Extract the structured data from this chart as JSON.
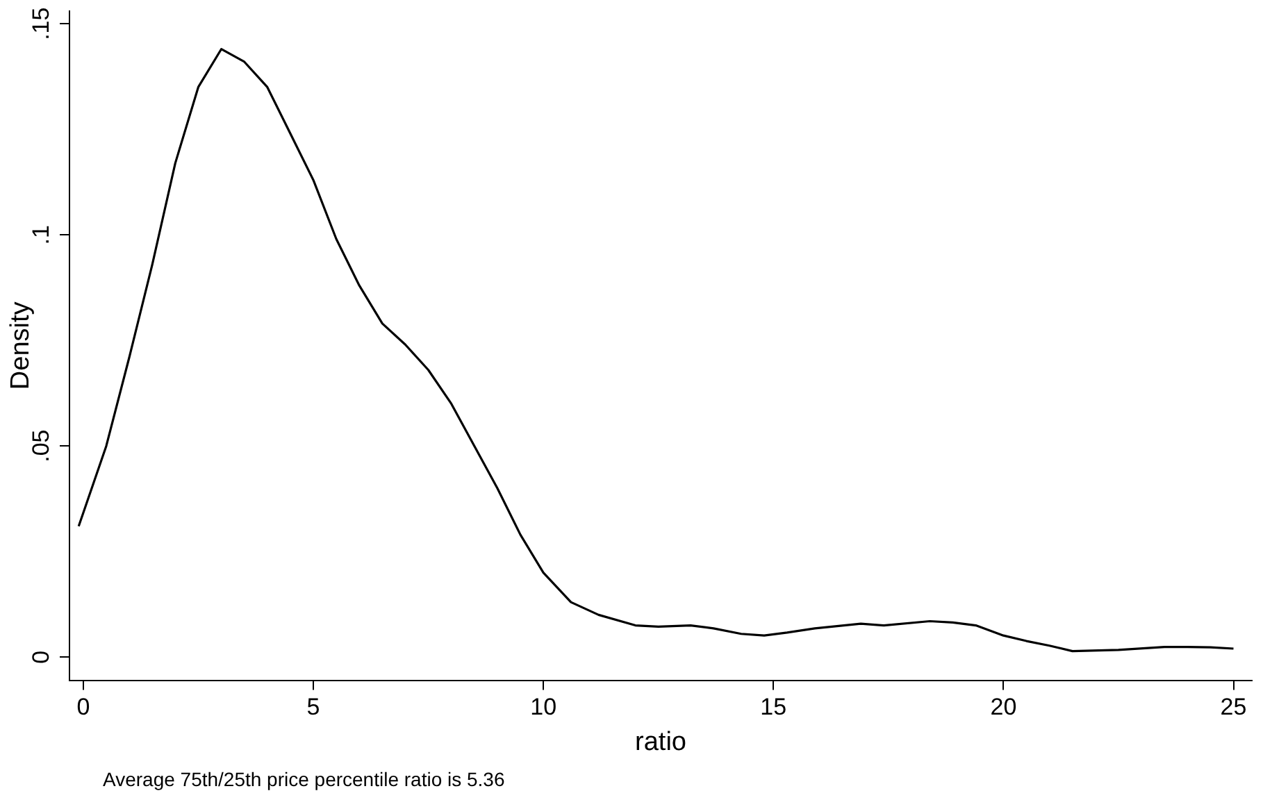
{
  "chart_data": {
    "type": "line",
    "xlabel": "ratio",
    "ylabel": "Density",
    "x": [
      -0.1,
      0.5,
      1,
      1.5,
      2,
      2.5,
      3,
      3.5,
      4,
      4.5,
      5,
      5.5,
      6,
      6.5,
      7,
      7.5,
      8,
      8.5,
      9,
      9.5,
      10,
      10.6,
      11.2,
      12,
      12.5,
      13.2,
      13.7,
      14.3,
      14.8,
      15.3,
      15.9,
      16.9,
      17.4,
      18.4,
      18.9,
      19.4,
      20,
      20.5,
      21,
      21.5,
      22.5,
      23.5,
      24,
      24.5,
      25
    ],
    "series": [
      {
        "color": "#000000",
        "values": [
          0.031,
          0.05,
          0.071,
          0.093,
          0.117,
          0.135,
          0.144,
          0.141,
          0.135,
          0.124,
          0.113,
          0.099,
          0.088,
          0.079,
          0.074,
          0.068,
          0.06,
          0.05,
          0.04,
          0.029,
          0.02,
          0.013,
          0.01,
          0.0075,
          0.0072,
          0.0075,
          0.0068,
          0.0055,
          0.0051,
          0.0058,
          0.0068,
          0.0079,
          0.0075,
          0.0085,
          0.0082,
          0.0075,
          0.0051,
          0.0038,
          0.0027,
          0.0014,
          0.0017,
          0.0024,
          0.0024,
          0.0023,
          0.002
        ]
      }
    ],
    "xlim": [
      -0.3,
      25.4
    ],
    "xticks": [
      0,
      5,
      10,
      15,
      20,
      25
    ],
    "ylim": [
      -0.0055,
      0.153
    ],
    "yticks": [
      {
        "value": 0,
        "label": "0"
      },
      {
        "value": 0.05,
        "label": ".05"
      },
      {
        "value": 0.1,
        "label": ".1"
      },
      {
        "value": 0.15,
        "label": ".15"
      }
    ],
    "grid": false,
    "legend": false,
    "marker": "none",
    "line_style": "solid",
    "annotations": [
      "Average 75th/25th price percentile ratio is 5.36"
    ]
  }
}
